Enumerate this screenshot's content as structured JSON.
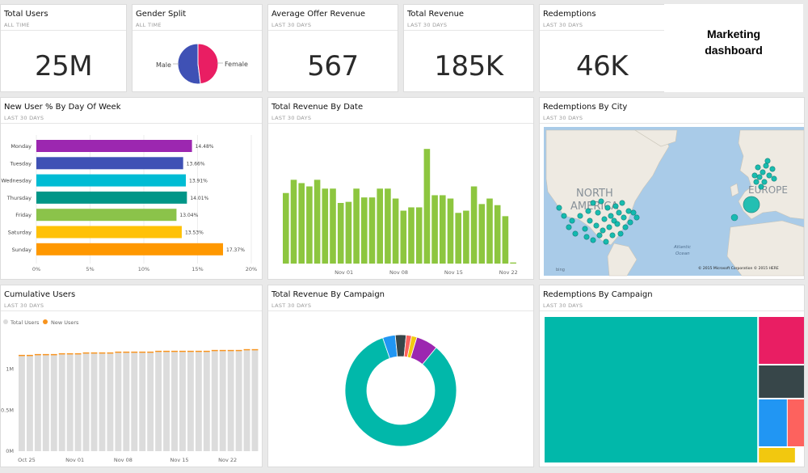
{
  "brand": {
    "line1": "Marketing",
    "line2": "dashboard"
  },
  "tiles": {
    "total_users": {
      "title": "Total Users",
      "sub": "ALL TIME",
      "value": "25M"
    },
    "gender_split": {
      "title": "Gender Split",
      "sub": "ALL TIME",
      "male": "Male",
      "female": "Female",
      "male_pct": 0.52
    },
    "avg_offer": {
      "title": "Average Offer Revenue",
      "sub": "LAST 30 DAYS",
      "value": "567"
    },
    "total_revenue": {
      "title": "Total Revenue",
      "sub": "LAST 30 DAYS",
      "value": "185K"
    },
    "redemptions": {
      "title": "Redemptions",
      "sub": "LAST 30 DAYS",
      "value": "46K"
    },
    "new_user_dow": {
      "title": "New User % By Day Of Week",
      "sub": "LAST 30 DAYS"
    },
    "rev_by_date": {
      "title": "Total Revenue By Date",
      "sub": "LAST 30 DAYS"
    },
    "red_by_city": {
      "title": "Redemptions By City",
      "sub": "LAST 30 DAYS",
      "label_na1": "NORTH",
      "label_na2": "AMERICA",
      "label_eu": "EUROPE",
      "label_ocean1": "Atlantic",
      "label_ocean2": "Ocean",
      "bing": "bing",
      "copyright": "© 2015 Microsoft Corporation   © 2015 HERE"
    },
    "cumulative": {
      "title": "Cumulative Users",
      "sub": "LAST 30 DAYS"
    },
    "rev_by_campaign": {
      "title": "Total Revenue By Campaign",
      "sub": "LAST 30 DAYS"
    },
    "red_by_campaign": {
      "title": "Redemptions By Campaign",
      "sub": "LAST 30 DAYS"
    }
  },
  "colors": {
    "teal": "#01b8aa",
    "green": "#8dc63f",
    "orange": "#f7931e",
    "gray": "#dcdcdc"
  },
  "chart_data": [
    {
      "id": "gender",
      "type": "pie",
      "title": "Gender Split",
      "slices": [
        {
          "name": "Male",
          "value": 52,
          "color": "#3f51b5"
        },
        {
          "name": "Female",
          "value": 48,
          "color": "#e91e63"
        }
      ]
    },
    {
      "id": "dow",
      "type": "bar",
      "orientation": "horizontal",
      "title": "New User % By Day Of Week",
      "categories": [
        "Monday",
        "Tuesday",
        "Wednesday",
        "Thursday",
        "Friday",
        "Saturday",
        "Sunday"
      ],
      "values": [
        14.48,
        13.66,
        13.91,
        14.01,
        13.04,
        13.53,
        17.37
      ],
      "labels": [
        "14.48%",
        "13.66%",
        "13.91%",
        "14.01%",
        "13.04%",
        "13.53%",
        "17.37%"
      ],
      "colors": [
        "#9c27b0",
        "#3f51b5",
        "#00bcd4",
        "#009688",
        "#8bc34a",
        "#ffc107",
        "#ff9800"
      ],
      "xticks": [
        "0%",
        "5%",
        "10%",
        "15%",
        "20%"
      ],
      "xlim": [
        0,
        20
      ]
    },
    {
      "id": "revdate",
      "type": "bar",
      "title": "Total Revenue By Date",
      "values": [
        6.4,
        7.6,
        7.3,
        7.0,
        7.6,
        6.8,
        6.8,
        5.5,
        5.6,
        6.8,
        6.0,
        6.0,
        6.8,
        6.8,
        5.9,
        4.8,
        5.1,
        5.1,
        10.4,
        6.2,
        6.2,
        5.9,
        4.6,
        4.8,
        7.0,
        5.4,
        5.9,
        5.3,
        4.3,
        0.1
      ],
      "xticks": [
        {
          "label": "Nov 01",
          "index": 8
        },
        {
          "label": "Nov 08",
          "index": 15
        },
        {
          "label": "Nov 15",
          "index": 22
        },
        {
          "label": "Nov 22",
          "index": 29
        }
      ],
      "ylim": [
        0,
        11
      ]
    },
    {
      "id": "cumulative",
      "type": "bar",
      "stacked": true,
      "title": "Cumulative Users",
      "series": [
        {
          "name": "Total Users",
          "color": "#dcdcdc"
        },
        {
          "name": "New Users",
          "color": "#f7931e"
        }
      ],
      "values": [
        1.16,
        1.16,
        1.17,
        1.17,
        1.17,
        1.18,
        1.18,
        1.18,
        1.19,
        1.19,
        1.19,
        1.19,
        1.2,
        1.2,
        1.2,
        1.2,
        1.2,
        1.21,
        1.21,
        1.21,
        1.21,
        1.21,
        1.21,
        1.21,
        1.22,
        1.22,
        1.22,
        1.22,
        1.23,
        1.23
      ],
      "ylim": [
        0,
        1.45
      ],
      "yticks": [
        {
          "label": "0M",
          "v": 0
        },
        {
          "label": "0.5M",
          "v": 0.5
        },
        {
          "label": "1M",
          "v": 1.0
        }
      ],
      "xticks": [
        {
          "label": "Oct 25",
          "index": 1
        },
        {
          "label": "Nov 01",
          "index": 7
        },
        {
          "label": "Nov 08",
          "index": 13
        },
        {
          "label": "Nov 15",
          "index": 20
        },
        {
          "label": "Nov 22",
          "index": 26
        }
      ]
    },
    {
      "id": "campaign",
      "type": "pie",
      "donut": true,
      "title": "Total Revenue By Campaign",
      "slices": [
        {
          "value": 80,
          "color": "#01b8aa"
        },
        {
          "value": 3.5,
          "color": "#2196f3"
        },
        {
          "value": 3,
          "color": "#374649"
        },
        {
          "value": 1.5,
          "color": "#fd625e"
        },
        {
          "value": 1.5,
          "color": "#f2c80f"
        },
        {
          "value": 6,
          "color": "#9c27b0"
        }
      ]
    },
    {
      "id": "redcampaign",
      "type": "treemap",
      "title": "Redemptions By Campaign",
      "cells": [
        {
          "value": 72,
          "color": "#01b8aa"
        },
        {
          "value": 8,
          "color": "#e91e63"
        },
        {
          "value": 6,
          "color": "#374649"
        },
        {
          "value": 5,
          "color": "#2196f3"
        },
        {
          "value": 4,
          "color": "#fd625e"
        },
        {
          "value": 3,
          "color": "#f2c80f"
        }
      ]
    }
  ]
}
